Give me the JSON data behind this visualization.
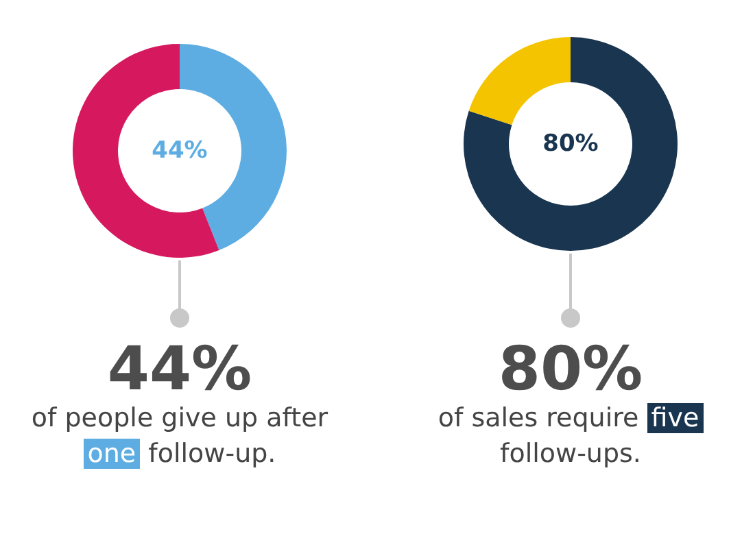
{
  "chart_data": [
    {
      "type": "donut",
      "title": "44%",
      "categories": [
        null,
        null
      ],
      "values": [
        44,
        56
      ],
      "colors": [
        "#5dade2",
        "#d6195f"
      ],
      "annotations": [
        "44%",
        "of people give up after",
        "one",
        "follow-up."
      ]
    },
    {
      "type": "donut",
      "title": "80%",
      "categories": [
        null,
        null
      ],
      "values": [
        80,
        20
      ],
      "colors": [
        "#1a3550",
        "#f5c400"
      ],
      "annotations": [
        "80%",
        "of sales require",
        "five",
        "follow-ups."
      ]
    }
  ]
}
